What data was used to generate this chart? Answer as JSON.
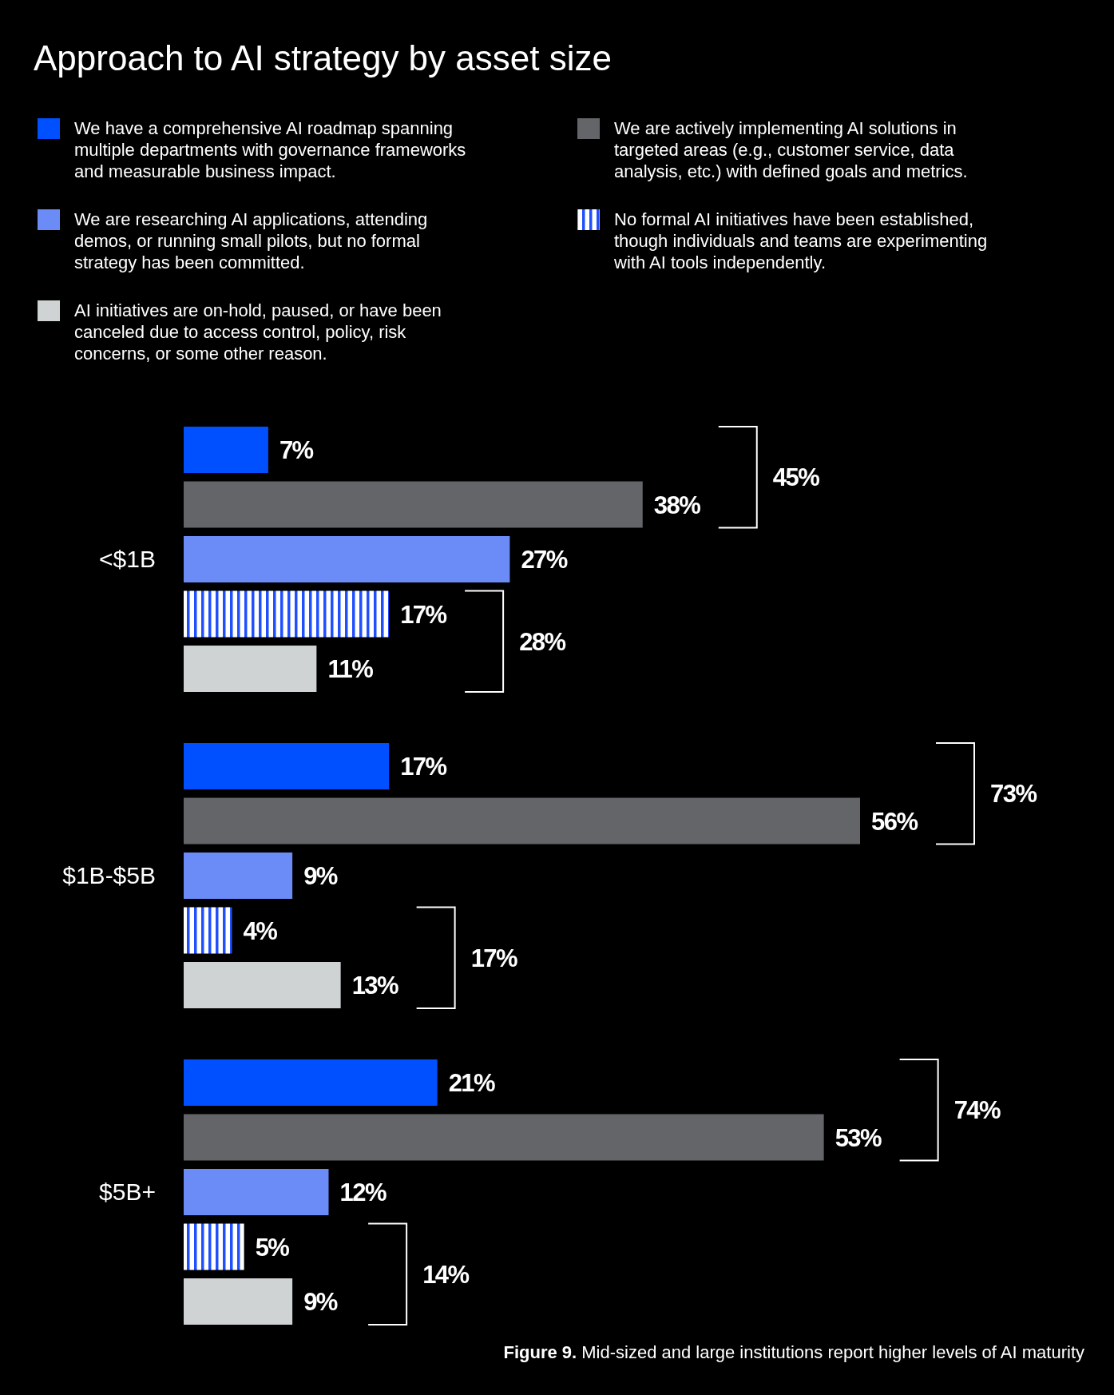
{
  "chart_data": {
    "type": "bar",
    "orientation": "horizontal",
    "title": "Approach to AI strategy by asset size",
    "categories": [
      "<$1B",
      "$1B-$5B",
      "$5B+"
    ],
    "series": [
      {
        "name": "We have a comprehensive AI roadmap spanning multiple departments with governance frameworks and measurable business impact.",
        "color": "#0050ff",
        "values": [
          7,
          17,
          21
        ],
        "value_labels": [
          "7%",
          "17%",
          "21%"
        ]
      },
      {
        "name": "We are actively implementing AI solutions in targeted areas (e.g., customer service, data analysis, etc.) with defined goals and metrics.",
        "color": "#636569",
        "values": [
          38,
          56,
          53
        ],
        "value_labels": [
          "38%",
          "56%",
          "53%"
        ]
      },
      {
        "name": "We are researching AI applications, attending demos, or running small pilots, but no formal strategy has been committed.",
        "color": "#6b8cf7",
        "values": [
          27,
          9,
          12
        ],
        "value_labels": [
          "27%",
          "9%",
          "12%"
        ]
      },
      {
        "name": "No formal AI initiatives have been established, though individuals and teams are experimenting with AI tools independently.",
        "color": "#1f4fff",
        "values": [
          17,
          4,
          5
        ],
        "value_labels": [
          "17%",
          "4%",
          "5%"
        ]
      },
      {
        "name": "AI initiatives are on-hold, paused, or have been canceled due to access control, policy, risk concerns, or some other reason.",
        "color": "#d0d3d4",
        "values": [
          11,
          13,
          9
        ],
        "value_labels": [
          "11%",
          "13%",
          "9%"
        ]
      }
    ],
    "legend": "top",
    "annotations": [
      "45%",
      "28%",
      "73%",
      "17%",
      "74%",
      "14%",
      "Figure 9. Mid-sized and large institutions report higher levels of AI maturity"
    ]
  }
}
